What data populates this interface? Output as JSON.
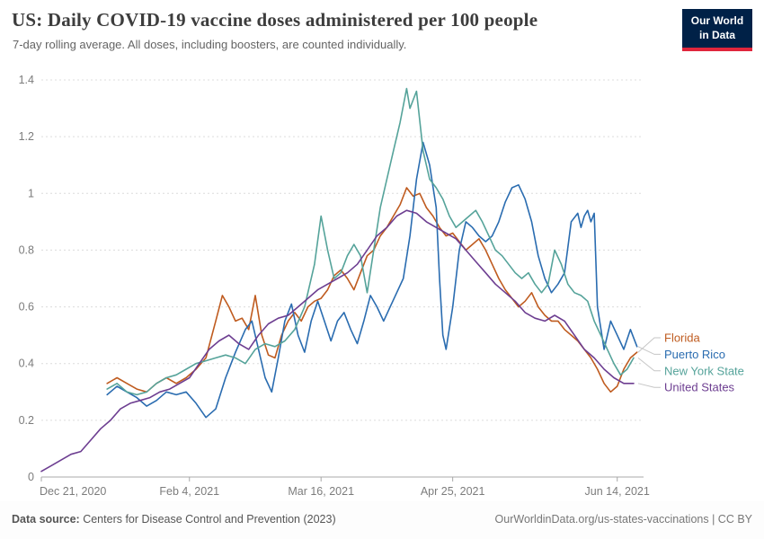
{
  "header": {
    "title": "US: Daily COVID-19 vaccine doses administered per 100 people",
    "subtitle": "7-day rolling average. All doses, including boosters, are counted individually.",
    "logo": {
      "line1": "Our World",
      "line2": "in Data",
      "bg": "#002147",
      "accent": "#e0263c"
    }
  },
  "footer": {
    "source_label": "Data source:",
    "source_text": " Centers for Disease Control and Prevention (2023)",
    "credit": "OurWorldinData.org/us-states-vaccinations | CC BY"
  },
  "chart_data": {
    "type": "line",
    "title": "US: Daily COVID-19 vaccine doses administered per 100 people",
    "subtitle": "7-day rolling average. All doses, including boosters, are counted individually.",
    "xlabel": "",
    "ylabel": "",
    "grid": "horizontal-dashed",
    "legend_position": "right",
    "y_axis": {
      "min": 0,
      "max": 1.4,
      "ticks": [
        0,
        0.2,
        0.4,
        0.6,
        0.8,
        1,
        1.2,
        1.4
      ]
    },
    "x_axis": {
      "domain_days": [
        0,
        183
      ],
      "start_date": "Dec 21, 2020",
      "ticks": [
        {
          "day": 0,
          "label": "Dec 21, 2020"
        },
        {
          "day": 45,
          "label": "Feb 4, 2021"
        },
        {
          "day": 85,
          "label": "Mar 16, 2021"
        },
        {
          "day": 125,
          "label": "Apr 25, 2021"
        },
        {
          "day": 175,
          "label": "Jun 14, 2021"
        }
      ]
    },
    "series": [
      {
        "name": "Florida",
        "color": "#bf5b1f",
        "points": [
          [
            20,
            0.33
          ],
          [
            23,
            0.35
          ],
          [
            26,
            0.33
          ],
          [
            29,
            0.31
          ],
          [
            32,
            0.3
          ],
          [
            35,
            0.33
          ],
          [
            38,
            0.35
          ],
          [
            41,
            0.33
          ],
          [
            44,
            0.35
          ],
          [
            47,
            0.38
          ],
          [
            50,
            0.42
          ],
          [
            53,
            0.55
          ],
          [
            55,
            0.64
          ],
          [
            57,
            0.6
          ],
          [
            59,
            0.55
          ],
          [
            61,
            0.56
          ],
          [
            63,
            0.52
          ],
          [
            65,
            0.64
          ],
          [
            67,
            0.5
          ],
          [
            69,
            0.43
          ],
          [
            71,
            0.42
          ],
          [
            73,
            0.5
          ],
          [
            75,
            0.55
          ],
          [
            77,
            0.58
          ],
          [
            79,
            0.55
          ],
          [
            81,
            0.6
          ],
          [
            83,
            0.62
          ],
          [
            85,
            0.63
          ],
          [
            87,
            0.66
          ],
          [
            89,
            0.71
          ],
          [
            91,
            0.73
          ],
          [
            93,
            0.7
          ],
          [
            95,
            0.66
          ],
          [
            97,
            0.72
          ],
          [
            99,
            0.78
          ],
          [
            101,
            0.8
          ],
          [
            103,
            0.85
          ],
          [
            105,
            0.88
          ],
          [
            107,
            0.92
          ],
          [
            109,
            0.96
          ],
          [
            111,
            1.02
          ],
          [
            113,
            0.99
          ],
          [
            115,
            1.0
          ],
          [
            117,
            0.95
          ],
          [
            119,
            0.92
          ],
          [
            121,
            0.88
          ],
          [
            123,
            0.85
          ],
          [
            125,
            0.86
          ],
          [
            127,
            0.83
          ],
          [
            129,
            0.8
          ],
          [
            131,
            0.82
          ],
          [
            133,
            0.84
          ],
          [
            135,
            0.8
          ],
          [
            137,
            0.75
          ],
          [
            139,
            0.7
          ],
          [
            141,
            0.66
          ],
          [
            143,
            0.63
          ],
          [
            145,
            0.6
          ],
          [
            147,
            0.62
          ],
          [
            149,
            0.65
          ],
          [
            151,
            0.6
          ],
          [
            153,
            0.57
          ],
          [
            155,
            0.55
          ],
          [
            157,
            0.55
          ],
          [
            159,
            0.52
          ],
          [
            161,
            0.5
          ],
          [
            163,
            0.48
          ],
          [
            165,
            0.45
          ],
          [
            167,
            0.42
          ],
          [
            169,
            0.38
          ],
          [
            171,
            0.33
          ],
          [
            173,
            0.3
          ],
          [
            175,
            0.32
          ],
          [
            177,
            0.38
          ],
          [
            179,
            0.42
          ],
          [
            181,
            0.44
          ]
        ]
      },
      {
        "name": "Puerto Rico",
        "color": "#2a6cb0",
        "points": [
          [
            20,
            0.29
          ],
          [
            23,
            0.32
          ],
          [
            26,
            0.3
          ],
          [
            29,
            0.28
          ],
          [
            32,
            0.25
          ],
          [
            35,
            0.27
          ],
          [
            38,
            0.3
          ],
          [
            41,
            0.29
          ],
          [
            44,
            0.3
          ],
          [
            47,
            0.26
          ],
          [
            50,
            0.21
          ],
          [
            53,
            0.24
          ],
          [
            56,
            0.35
          ],
          [
            59,
            0.44
          ],
          [
            62,
            0.52
          ],
          [
            64,
            0.55
          ],
          [
            66,
            0.45
          ],
          [
            68,
            0.35
          ],
          [
            70,
            0.3
          ],
          [
            72,
            0.42
          ],
          [
            74,
            0.55
          ],
          [
            76,
            0.61
          ],
          [
            78,
            0.5
          ],
          [
            80,
            0.44
          ],
          [
            82,
            0.55
          ],
          [
            84,
            0.62
          ],
          [
            86,
            0.55
          ],
          [
            88,
            0.48
          ],
          [
            90,
            0.55
          ],
          [
            92,
            0.58
          ],
          [
            94,
            0.52
          ],
          [
            96,
            0.47
          ],
          [
            98,
            0.55
          ],
          [
            100,
            0.64
          ],
          [
            102,
            0.6
          ],
          [
            104,
            0.55
          ],
          [
            106,
            0.6
          ],
          [
            108,
            0.65
          ],
          [
            110,
            0.7
          ],
          [
            112,
            0.85
          ],
          [
            114,
            1.05
          ],
          [
            116,
            1.18
          ],
          [
            118,
            1.1
          ],
          [
            120,
            0.95
          ],
          [
            121,
            0.7
          ],
          [
            122,
            0.5
          ],
          [
            123,
            0.45
          ],
          [
            125,
            0.6
          ],
          [
            127,
            0.8
          ],
          [
            129,
            0.9
          ],
          [
            131,
            0.88
          ],
          [
            133,
            0.85
          ],
          [
            135,
            0.83
          ],
          [
            137,
            0.85
          ],
          [
            139,
            0.9
          ],
          [
            141,
            0.97
          ],
          [
            143,
            1.02
          ],
          [
            145,
            1.03
          ],
          [
            147,
            0.98
          ],
          [
            149,
            0.9
          ],
          [
            151,
            0.78
          ],
          [
            153,
            0.7
          ],
          [
            155,
            0.65
          ],
          [
            157,
            0.68
          ],
          [
            159,
            0.72
          ],
          [
            161,
            0.9
          ],
          [
            163,
            0.93
          ],
          [
            164,
            0.88
          ],
          [
            165,
            0.92
          ],
          [
            166,
            0.94
          ],
          [
            167,
            0.9
          ],
          [
            168,
            0.93
          ],
          [
            169,
            0.6
          ],
          [
            171,
            0.45
          ],
          [
            173,
            0.55
          ],
          [
            175,
            0.5
          ],
          [
            177,
            0.45
          ],
          [
            179,
            0.52
          ],
          [
            181,
            0.46
          ]
        ]
      },
      {
        "name": "New York State",
        "color": "#55a39a",
        "points": [
          [
            20,
            0.31
          ],
          [
            23,
            0.33
          ],
          [
            26,
            0.3
          ],
          [
            29,
            0.29
          ],
          [
            32,
            0.3
          ],
          [
            35,
            0.33
          ],
          [
            38,
            0.35
          ],
          [
            41,
            0.36
          ],
          [
            44,
            0.38
          ],
          [
            47,
            0.4
          ],
          [
            50,
            0.41
          ],
          [
            53,
            0.42
          ],
          [
            56,
            0.43
          ],
          [
            59,
            0.42
          ],
          [
            62,
            0.4
          ],
          [
            65,
            0.45
          ],
          [
            68,
            0.47
          ],
          [
            71,
            0.46
          ],
          [
            74,
            0.48
          ],
          [
            77,
            0.52
          ],
          [
            80,
            0.6
          ],
          [
            83,
            0.75
          ],
          [
            85,
            0.92
          ],
          [
            87,
            0.8
          ],
          [
            89,
            0.7
          ],
          [
            91,
            0.72
          ],
          [
            93,
            0.78
          ],
          [
            95,
            0.82
          ],
          [
            97,
            0.78
          ],
          [
            99,
            0.65
          ],
          [
            101,
            0.8
          ],
          [
            103,
            0.95
          ],
          [
            105,
            1.05
          ],
          [
            107,
            1.15
          ],
          [
            109,
            1.25
          ],
          [
            111,
            1.37
          ],
          [
            112,
            1.3
          ],
          [
            113,
            1.33
          ],
          [
            114,
            1.36
          ],
          [
            116,
            1.15
          ],
          [
            118,
            1.05
          ],
          [
            120,
            1.02
          ],
          [
            122,
            0.98
          ],
          [
            124,
            0.92
          ],
          [
            126,
            0.88
          ],
          [
            128,
            0.9
          ],
          [
            130,
            0.92
          ],
          [
            132,
            0.94
          ],
          [
            134,
            0.9
          ],
          [
            136,
            0.85
          ],
          [
            138,
            0.8
          ],
          [
            140,
            0.78
          ],
          [
            142,
            0.75
          ],
          [
            144,
            0.72
          ],
          [
            146,
            0.7
          ],
          [
            148,
            0.72
          ],
          [
            150,
            0.68
          ],
          [
            152,
            0.65
          ],
          [
            154,
            0.68
          ],
          [
            156,
            0.8
          ],
          [
            158,
            0.75
          ],
          [
            160,
            0.68
          ],
          [
            162,
            0.65
          ],
          [
            164,
            0.64
          ],
          [
            166,
            0.62
          ],
          [
            168,
            0.55
          ],
          [
            170,
            0.5
          ],
          [
            172,
            0.45
          ],
          [
            174,
            0.4
          ],
          [
            176,
            0.36
          ],
          [
            178,
            0.38
          ],
          [
            180,
            0.42
          ]
        ]
      },
      {
        "name": "United States",
        "color": "#6d3e91",
        "points": [
          [
            0,
            0.02
          ],
          [
            3,
            0.04
          ],
          [
            6,
            0.06
          ],
          [
            9,
            0.08
          ],
          [
            12,
            0.09
          ],
          [
            15,
            0.13
          ],
          [
            18,
            0.17
          ],
          [
            21,
            0.2
          ],
          [
            24,
            0.24
          ],
          [
            27,
            0.26
          ],
          [
            30,
            0.27
          ],
          [
            33,
            0.28
          ],
          [
            36,
            0.3
          ],
          [
            39,
            0.31
          ],
          [
            42,
            0.33
          ],
          [
            45,
            0.35
          ],
          [
            48,
            0.4
          ],
          [
            51,
            0.45
          ],
          [
            54,
            0.48
          ],
          [
            57,
            0.5
          ],
          [
            60,
            0.47
          ],
          [
            63,
            0.45
          ],
          [
            66,
            0.5
          ],
          [
            69,
            0.54
          ],
          [
            72,
            0.56
          ],
          [
            75,
            0.57
          ],
          [
            78,
            0.6
          ],
          [
            81,
            0.63
          ],
          [
            84,
            0.66
          ],
          [
            87,
            0.68
          ],
          [
            90,
            0.7
          ],
          [
            93,
            0.72
          ],
          [
            96,
            0.75
          ],
          [
            99,
            0.8
          ],
          [
            102,
            0.85
          ],
          [
            105,
            0.88
          ],
          [
            108,
            0.92
          ],
          [
            111,
            0.94
          ],
          [
            114,
            0.93
          ],
          [
            117,
            0.9
          ],
          [
            120,
            0.88
          ],
          [
            123,
            0.86
          ],
          [
            126,
            0.84
          ],
          [
            129,
            0.8
          ],
          [
            132,
            0.76
          ],
          [
            135,
            0.72
          ],
          [
            138,
            0.68
          ],
          [
            141,
            0.65
          ],
          [
            144,
            0.62
          ],
          [
            147,
            0.58
          ],
          [
            150,
            0.56
          ],
          [
            153,
            0.55
          ],
          [
            156,
            0.57
          ],
          [
            159,
            0.55
          ],
          [
            162,
            0.5
          ],
          [
            165,
            0.45
          ],
          [
            168,
            0.42
          ],
          [
            171,
            0.38
          ],
          [
            174,
            0.35
          ],
          [
            177,
            0.33
          ],
          [
            180,
            0.33
          ]
        ]
      }
    ]
  }
}
